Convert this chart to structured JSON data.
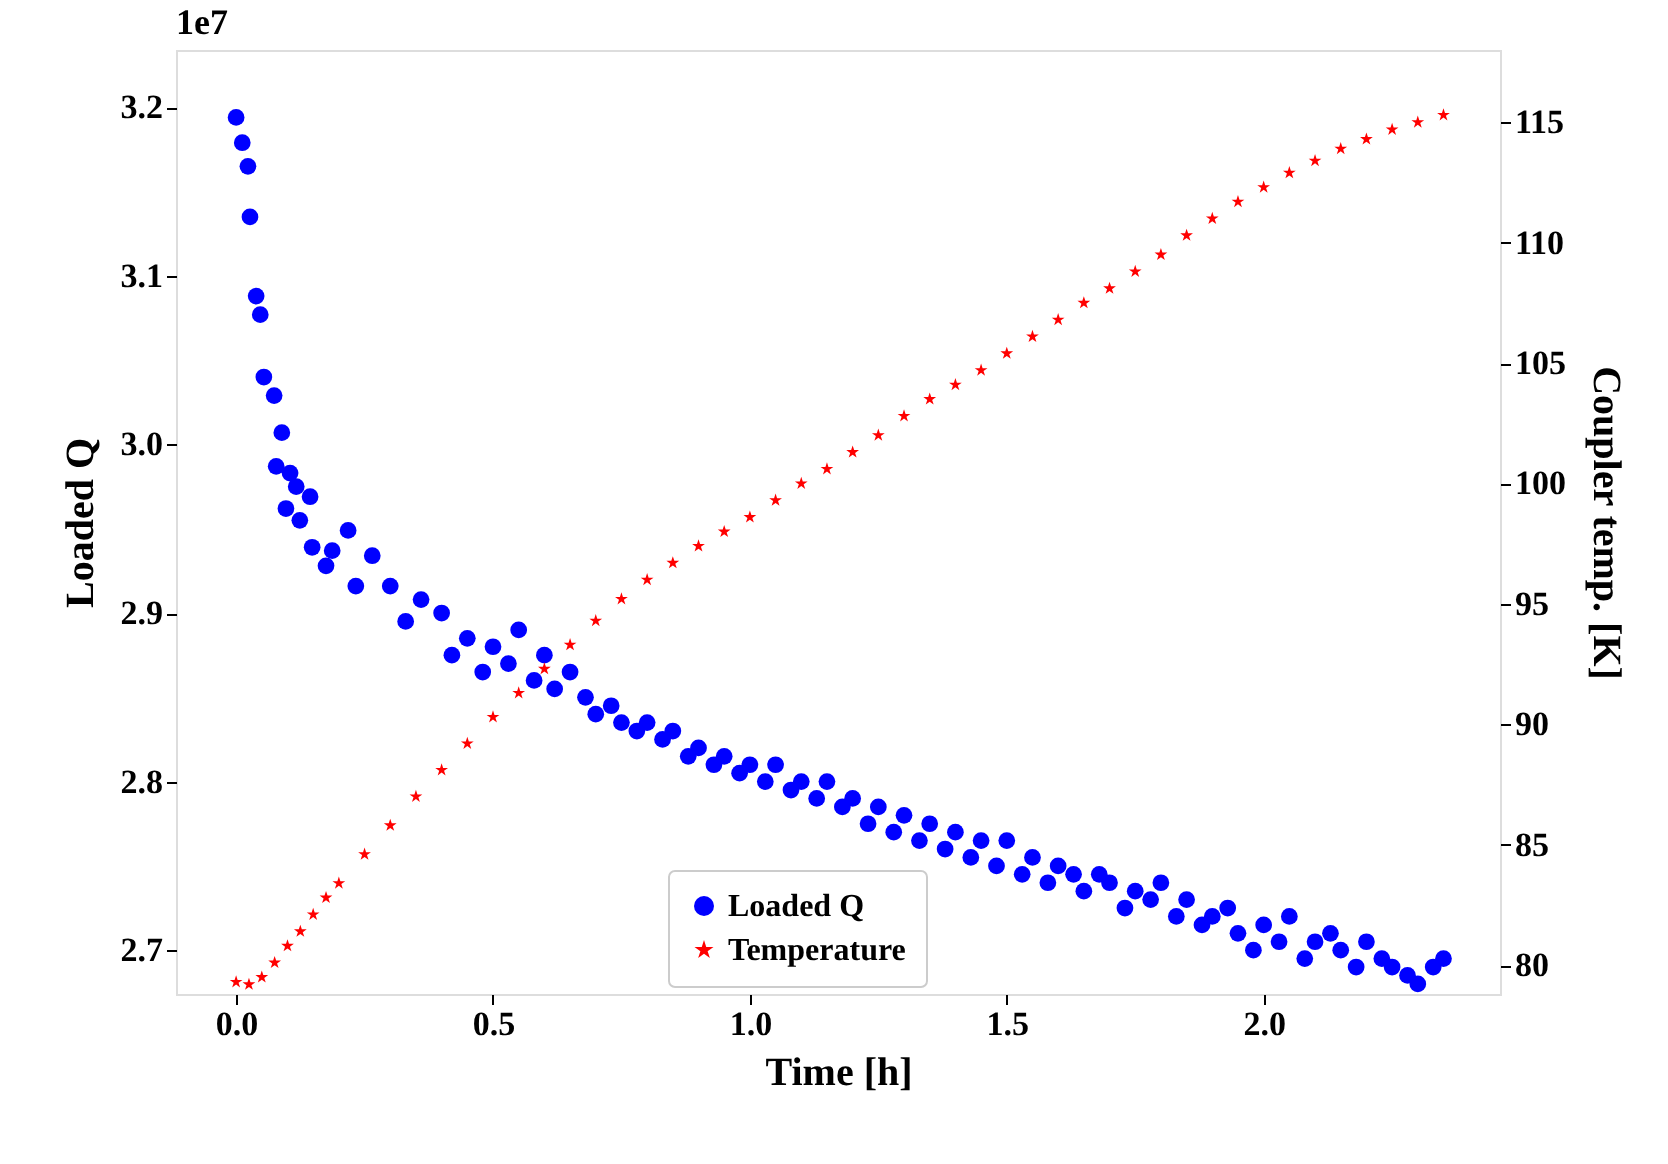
{
  "chart_data": {
    "type": "scatter",
    "xlabel": "Time [h]",
    "ylabel": "Loaded Q",
    "y2label": "Coupler temp. [K]",
    "annotations": [
      "1e7"
    ],
    "xlim": [
      -0.117,
      2.46
    ],
    "xticks": [
      {
        "value": 0,
        "label": "0.0"
      },
      {
        "value": 0.5,
        "label": "0.5"
      },
      {
        "value": 1,
        "label": "1.0"
      },
      {
        "value": 1.5,
        "label": "1.5"
      },
      {
        "value": 2,
        "label": "2.0"
      }
    ],
    "ylim": [
      2.674,
      3.234
    ],
    "yticks": [
      2.7,
      2.8,
      2.9,
      {
        "value": 3,
        "label": "3.0"
      },
      3.1,
      3.2
    ],
    "y2lim": [
      78.8,
      118.0
    ],
    "y2ticks": [
      80,
      85,
      90,
      95,
      100,
      105,
      110,
      115
    ],
    "grid": false,
    "legend": "bottom",
    "series": [
      {
        "name": "Loaded Q",
        "color": "#0000ff",
        "marker": "circle",
        "x": [
          0,
          0.012,
          0.023,
          0.027,
          0.039,
          0.047,
          0.054,
          0.074,
          0.089,
          0.078,
          0.105,
          0.117,
          0.097,
          0.144,
          0.124,
          0.218,
          0.148,
          0.187,
          0.265,
          0.175,
          0.233,
          0.3,
          0.36,
          0.33,
          0.4,
          0.42,
          0.45,
          0.48,
          0.5,
          0.53,
          0.55,
          0.58,
          0.6,
          0.62,
          0.65,
          0.68,
          0.7,
          0.73,
          0.75,
          0.78,
          0.8,
          0.83,
          0.85,
          0.88,
          0.9,
          0.93,
          0.95,
          0.98,
          1.0,
          1.03,
          1.05,
          1.08,
          1.1,
          1.13,
          1.15,
          1.18,
          1.2,
          1.23,
          1.25,
          1.28,
          1.3,
          1.33,
          1.35,
          1.38,
          1.4,
          1.43,
          1.45,
          1.48,
          1.5,
          1.53,
          1.55,
          1.58,
          1.6,
          1.63,
          1.65,
          1.68,
          1.7,
          1.73,
          1.75,
          1.78,
          1.8,
          1.83,
          1.85,
          1.88,
          1.9,
          1.93,
          1.95,
          1.98,
          2.0,
          2.03,
          2.05,
          2.08,
          2.1,
          2.13,
          2.15,
          2.18,
          2.2,
          2.23,
          2.25,
          2.28,
          2.3,
          2.33,
          2.35
        ],
        "values": [
          3.194,
          3.179,
          3.165,
          3.135,
          3.088,
          3.077,
          3.04,
          3.029,
          3.007,
          2.987,
          2.983,
          2.975,
          2.962,
          2.969,
          2.955,
          2.949,
          2.939,
          2.937,
          2.934,
          2.928,
          2.916,
          2.916,
          2.908,
          2.895,
          2.9,
          2.875,
          2.885,
          2.865,
          2.88,
          2.87,
          2.89,
          2.86,
          2.875,
          2.855,
          2.865,
          2.85,
          2.84,
          2.845,
          2.835,
          2.83,
          2.835,
          2.825,
          2.83,
          2.815,
          2.82,
          2.81,
          2.815,
          2.805,
          2.81,
          2.8,
          2.81,
          2.795,
          2.8,
          2.79,
          2.8,
          2.785,
          2.79,
          2.775,
          2.785,
          2.77,
          2.78,
          2.765,
          2.775,
          2.76,
          2.77,
          2.755,
          2.765,
          2.75,
          2.765,
          2.745,
          2.755,
          2.74,
          2.75,
          2.745,
          2.735,
          2.745,
          2.74,
          2.725,
          2.735,
          2.73,
          2.74,
          2.72,
          2.73,
          2.715,
          2.72,
          2.725,
          2.71,
          2.7,
          2.715,
          2.705,
          2.72,
          2.695,
          2.705,
          2.71,
          2.7,
          2.69,
          2.705,
          2.695,
          2.69,
          2.685,
          2.68,
          2.69,
          2.695
        ]
      },
      {
        "name": "Temperature",
        "color": "#ff0000",
        "marker": "star",
        "axis": "y2",
        "x": [
          0,
          0.025,
          0.05,
          0.075,
          0.1,
          0.125,
          0.15,
          0.175,
          0.2,
          0.25,
          0.3,
          0.35,
          0.4,
          0.45,
          0.5,
          0.55,
          0.6,
          0.65,
          0.7,
          0.75,
          0.8,
          0.85,
          0.9,
          0.95,
          1.0,
          1.05,
          1.1,
          1.15,
          1.2,
          1.25,
          1.3,
          1.35,
          1.4,
          1.45,
          1.5,
          1.55,
          1.6,
          1.65,
          1.7,
          1.75,
          1.8,
          1.85,
          1.9,
          1.95,
          2.0,
          2.05,
          2.1,
          2.15,
          2.2,
          2.25,
          2.3,
          2.35
        ],
        "values": [
          79.3,
          79.2,
          79.5,
          80.1,
          80.8,
          81.4,
          82.1,
          82.8,
          83.4,
          84.6,
          85.8,
          87.0,
          88.1,
          89.2,
          90.3,
          91.3,
          92.3,
          93.3,
          94.3,
          95.2,
          96.0,
          96.7,
          97.4,
          98.0,
          98.6,
          99.3,
          100.0,
          100.6,
          101.3,
          102.0,
          102.8,
          103.5,
          104.1,
          104.7,
          105.4,
          106.1,
          106.8,
          107.5,
          108.1,
          108.8,
          109.5,
          110.3,
          111.0,
          111.7,
          112.3,
          112.9,
          113.4,
          113.9,
          114.3,
          114.7,
          115.0,
          115.3
        ]
      }
    ]
  }
}
